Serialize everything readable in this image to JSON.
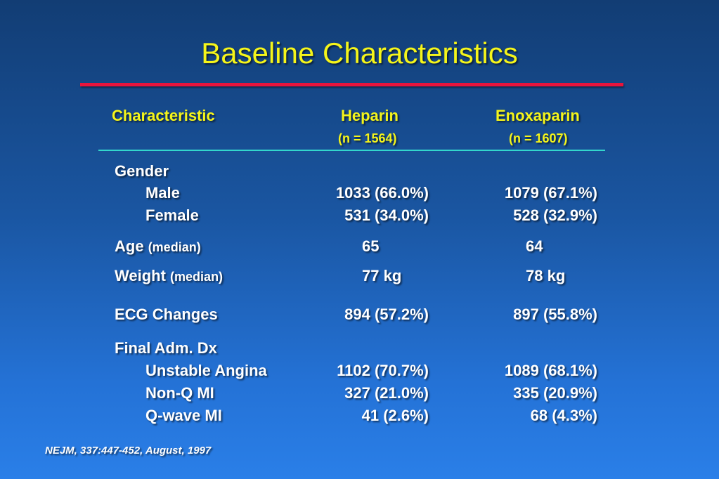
{
  "title": "Baseline Characteristics",
  "colors": {
    "title": "#f5f51a",
    "title_rule": "#e8143c",
    "header_rule": "#33d6cc"
  },
  "header": {
    "characteristic": "Characteristic",
    "heparin": "Heparin",
    "heparin_n": "(n = 1564)",
    "enoxaparin": "Enoxaparin",
    "enoxaparin_n": "(n = 1607)"
  },
  "rows": {
    "gender": {
      "label": "Gender"
    },
    "male": {
      "label": "Male",
      "heparin": "1033 (66.0%)",
      "enoxaparin": "1079 (67.1%)"
    },
    "female": {
      "label": "Female",
      "heparin": "531 (34.0%)",
      "enoxaparin": "528 (32.9%)"
    },
    "age": {
      "label": "Age",
      "qualifier": "(median)",
      "heparin": "65",
      "enoxaparin": "64"
    },
    "weight": {
      "label": "Weight",
      "qualifier": "(median)",
      "heparin": "77 kg",
      "enoxaparin": "78 kg"
    },
    "ecg": {
      "label": "ECG Changes",
      "heparin": "894 (57.2%)",
      "enoxaparin": "897 (55.8%)"
    },
    "final_dx": {
      "label": "Final Adm. Dx"
    },
    "unstable_angina": {
      "label": "Unstable Angina",
      "heparin": "1102 (70.7%)",
      "enoxaparin": "1089 (68.1%)"
    },
    "non_q_mi": {
      "label": "Non-Q MI",
      "heparin": "327 (21.0%)",
      "enoxaparin": "335 (20.9%)"
    },
    "q_wave_mi": {
      "label": "Q-wave MI",
      "heparin": "41 (2.6%)",
      "enoxaparin": "68 (4.3%)"
    }
  },
  "citation": "NEJM, 337:447-452, August, 1997"
}
